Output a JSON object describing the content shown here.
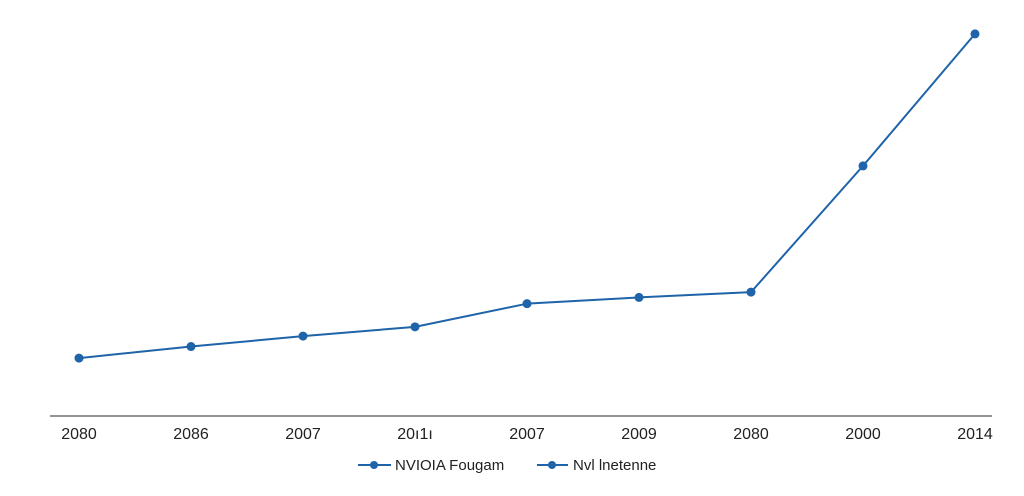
{
  "chart_data": {
    "type": "line",
    "title": "",
    "xlabel": "",
    "ylabel": "",
    "categories": [
      "2080",
      "2086",
      "2007",
      "20ı1ı",
      "2007",
      "2009",
      "2080",
      "2000",
      "2014"
    ],
    "series": [
      {
        "name": "NVIOIA Fougam",
        "values": [
          1.0,
          1.5,
          1.95,
          2.35,
          3.35,
          3.62,
          3.85,
          9.3,
          15.0
        ],
        "color": "#1f63a8"
      }
    ],
    "ylim": [
      -1.5,
      15.6
    ],
    "grid": false,
    "legend": {
      "position": "bottom-center",
      "entries": [
        {
          "label": "NVIOIA Fougam",
          "color": "#1f63a8",
          "marker": "circle"
        },
        {
          "label": "Nvl lnetenne",
          "color": "#1f63a8",
          "marker": "circle"
        }
      ]
    }
  }
}
